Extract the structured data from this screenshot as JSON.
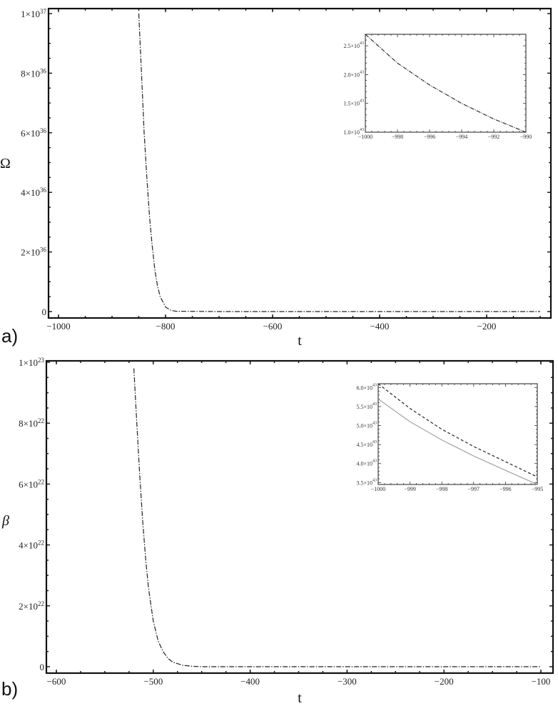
{
  "panels": [
    {
      "label": "a)",
      "ylabel": "Ω",
      "xlabel": "t"
    },
    {
      "label": "b)",
      "ylabel": "β",
      "xlabel": "t"
    }
  ],
  "chart_data": [
    {
      "type": "line",
      "panel": "a)",
      "title": "",
      "xlabel": "t",
      "ylabel": "Ω",
      "xlim": [
        -1020,
        -90
      ],
      "ylim": [
        0,
        1e+37
      ],
      "x_ticks": [
        "-1000",
        "-800",
        "-600",
        "-400",
        "-200"
      ],
      "y_ticks": [
        "0",
        "2×10^36",
        "4×10^36",
        "6×10^36",
        "8×10^36",
        "1×10^37"
      ],
      "series": [
        {
          "name": "Ω(t)",
          "style": "dash-dot",
          "x": [
            -850,
            -845,
            -840,
            -835,
            -830,
            -825,
            -820,
            -815,
            -810,
            -800,
            -790,
            -780,
            -700,
            -600,
            -400,
            -200,
            -100
          ],
          "y": [
            1e+37,
            8e+36,
            6e+36,
            4.5e+36,
            3.2e+36,
            2.2e+36,
            1.4e+36,
            8.5e+35,
            5e+35,
            1.5e+35,
            4e+34,
            1e+34,
            0,
            0,
            0,
            0,
            0
          ]
        }
      ],
      "inset": {
        "xlim": [
          -1000,
          -990
        ],
        "ylim": [
          1e+43,
          2.7e+43
        ],
        "x_ticks": [
          "-1000",
          "-998",
          "-996",
          "-994",
          "-992",
          "-990"
        ],
        "y_ticks": [
          "1.0×10^43",
          "1.5×10^43",
          "2.0×10^43",
          "2.5×10^43"
        ],
        "series": [
          {
            "name": "Ω(t) inset",
            "style": "dash-dot",
            "x": [
              -1000,
              -998,
              -996,
              -994,
              -992,
              -990
            ],
            "y": [
              2.7e+43,
              2.2e+43,
              1.82e+43,
              1.5e+43,
              1.23e+43,
              1e+43
            ]
          }
        ]
      },
      "grid": false,
      "legend": null
    },
    {
      "type": "line",
      "panel": "b)",
      "title": "",
      "xlabel": "t",
      "ylabel": "β",
      "xlim": [
        -610,
        -95
      ],
      "ylim": [
        0,
        1e+23
      ],
      "x_ticks": [
        "-600",
        "-500",
        "-400",
        "-300",
        "-200",
        "-100"
      ],
      "y_ticks": [
        "0",
        "2×10^22",
        "4×10^22",
        "6×10^22",
        "8×10^22",
        "1×10^23"
      ],
      "series": [
        {
          "name": "β(t)",
          "style": "dash-dot",
          "x": [
            -520,
            -517,
            -514,
            -511,
            -508,
            -505,
            -500,
            -495,
            -490,
            -485,
            -480,
            -470,
            -460,
            -450,
            -400,
            -300,
            -200,
            -100
          ],
          "y": [
            9.8e+22,
            8e+22,
            6.3e+22,
            4.8e+22,
            3.6e+22,
            2.6e+22,
            1.5e+22,
            8.5e+21,
            5e+21,
            2.8e+21,
            1.5e+21,
            5e+20,
            1.5e+20,
            0,
            0,
            0,
            0,
            0
          ]
        }
      ],
      "inset": {
        "xlim": [
          -1000,
          -995
        ],
        "ylim": [
          3.45e+43,
          6.1e+43
        ],
        "x_ticks": [
          "-1000",
          "-999",
          "-998",
          "-997",
          "-996",
          "-995"
        ],
        "y_ticks": [
          "3.5×10^43",
          "4.0×10^43",
          "4.5×10^43",
          "5.0×10^43",
          "5.5×10^43",
          "6.0×10^43"
        ],
        "series": [
          {
            "name": "dashed",
            "style": "dashed",
            "color": "#333333",
            "x": [
              -1000,
              -999,
              -998,
              -997,
              -996,
              -995
            ],
            "y": [
              6.1e+43,
              5.45e+43,
              4.9e+43,
              4.45e+43,
              4.05e+43,
              3.65e+43
            ]
          },
          {
            "name": "solid",
            "style": "solid",
            "color": "#999999",
            "x": [
              -1000,
              -999,
              -998,
              -997,
              -996,
              -995
            ],
            "y": [
              5.7e+43,
              5.1e+43,
              4.62e+43,
              4.2e+43,
              3.82e+43,
              3.45e+43
            ]
          }
        ]
      },
      "grid": false,
      "legend": null
    }
  ]
}
